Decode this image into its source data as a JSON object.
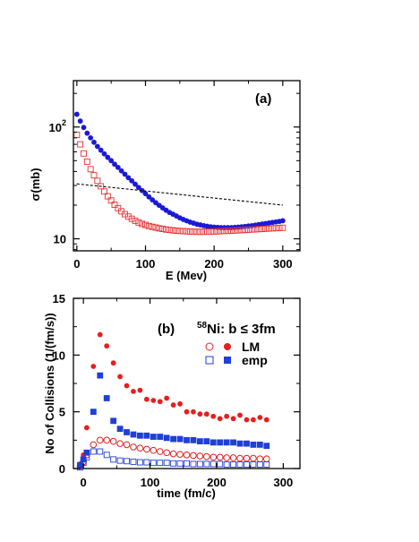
{
  "chart_data": [
    {
      "type": "scatter",
      "panel_label": "(a)",
      "xlabel": "E (Mev)",
      "ylabel": "σ(mb)",
      "xlim": [
        -5,
        325
      ],
      "ylim": [
        7.8,
        260
      ],
      "yscale": "log",
      "x_ticks": [
        "0",
        "100",
        "200",
        "300"
      ],
      "y_ticks": [
        {
          "value": 10,
          "label": "10"
        },
        {
          "value": 100,
          "label": "10",
          "sup": "2"
        }
      ],
      "colors": {
        "filled": "#1a1ad6",
        "open": "#e83030",
        "dashed": "#000000"
      },
      "series": [
        {
          "marker": "filled-circle",
          "color": "#1a1ad6",
          "x": [
            0,
            5,
            10,
            15,
            20,
            25,
            30,
            35,
            40,
            45,
            50,
            55,
            60,
            65,
            70,
            75,
            80,
            85,
            90,
            95,
            100,
            105,
            110,
            115,
            120,
            125,
            130,
            135,
            140,
            145,
            150,
            155,
            160,
            165,
            170,
            175,
            180,
            185,
            190,
            195,
            200,
            205,
            210,
            215,
            220,
            225,
            230,
            235,
            240,
            245,
            250,
            255,
            260,
            265,
            270,
            275,
            280,
            285,
            290,
            295,
            300
          ],
          "y": [
            130,
            113,
            99,
            88,
            80,
            73,
            67,
            62,
            57.5,
            53.5,
            50,
            46.5,
            43.5,
            40.5,
            37.8,
            35.2,
            33,
            30.8,
            28.8,
            27,
            25.3,
            23.7,
            22.3,
            21,
            19.9,
            18.9,
            18,
            17.2,
            16.6,
            16,
            15.4,
            14.9,
            14.5,
            14.1,
            13.8,
            13.5,
            13.3,
            13.1,
            12.95,
            12.8,
            12.7,
            12.65,
            12.6,
            12.6,
            12.6,
            12.6,
            12.65,
            12.7,
            12.8,
            12.9,
            13,
            13.1,
            13.25,
            13.4,
            13.55,
            13.7,
            13.85,
            14,
            14.15,
            14.3,
            14.5
          ]
        },
        {
          "marker": "open-square",
          "color": "#e83030",
          "x": [
            0,
            5,
            10,
            15,
            20,
            25,
            30,
            35,
            40,
            45,
            50,
            55,
            60,
            65,
            70,
            75,
            80,
            85,
            90,
            95,
            100,
            105,
            110,
            115,
            120,
            125,
            130,
            135,
            140,
            145,
            150,
            155,
            160,
            165,
            170,
            175,
            180,
            185,
            190,
            195,
            200,
            205,
            210,
            215,
            220,
            225,
            230,
            235,
            240,
            245,
            250,
            255,
            260,
            265,
            270,
            275,
            280,
            285,
            290,
            295,
            300
          ],
          "y": [
            85,
            70,
            58,
            49,
            42,
            37,
            33,
            29.5,
            26.5,
            24,
            22,
            20.2,
            18.8,
            17.6,
            16.6,
            15.8,
            15.1,
            14.5,
            14,
            13.6,
            13.3,
            13,
            12.8,
            12.6,
            12.4,
            12.25,
            12.1,
            12,
            11.9,
            11.8,
            11.75,
            11.7,
            11.65,
            11.6,
            11.58,
            11.55,
            11.55,
            11.55,
            11.58,
            11.6,
            11.63,
            11.66,
            11.7,
            11.74,
            11.78,
            11.82,
            11.86,
            11.9,
            11.95,
            12,
            12.05,
            12.1,
            12.15,
            12.2,
            12.25,
            12.3,
            12.35,
            12.4,
            12.45,
            12.5,
            12.55
          ]
        },
        {
          "marker": "dashed-line",
          "color": "#000000",
          "x": [
            0,
            300
          ],
          "y": [
            31,
            20
          ]
        }
      ]
    },
    {
      "type": "scatter",
      "panel_label": "(b)",
      "title_text": "Ni: b ≤ 3fm",
      "title_sup": "58",
      "xlabel": "time (fm/c)",
      "ylabel": "No of Collisions (1/(fm/s))",
      "xlim": [
        -15,
        325
      ],
      "ylim": [
        0,
        15
      ],
      "x_ticks": [
        "0",
        "100",
        "200",
        "300"
      ],
      "y_ticks": [
        "0",
        "5",
        "10",
        "15"
      ],
      "legend": {
        "lm": "LM",
        "emp": "emp"
      },
      "series": [
        {
          "legend": "LM",
          "marker": "filled-circle",
          "color": "#e81e1e",
          "x": [
            -5,
            0,
            5,
            15,
            25,
            35,
            45,
            55,
            65,
            75,
            85,
            95,
            105,
            115,
            125,
            135,
            145,
            155,
            165,
            175,
            185,
            195,
            205,
            215,
            225,
            235,
            245,
            255,
            265,
            275
          ],
          "y": [
            0.4,
            1.2,
            3.6,
            9.0,
            11.8,
            10.8,
            9.3,
            8.1,
            7.3,
            6.8,
            6.9,
            6.1,
            6.0,
            5.9,
            6.2,
            5.6,
            5.7,
            5.0,
            5.0,
            4.8,
            4.8,
            4.6,
            4.4,
            4.6,
            4.4,
            4.7,
            4.3,
            4.3,
            4.5,
            4.3
          ]
        },
        {
          "legend": "LM",
          "marker": "open-circle",
          "color": "#e81e1e",
          "x": [
            -5,
            0,
            5,
            15,
            25,
            35,
            45,
            55,
            65,
            75,
            85,
            95,
            105,
            115,
            125,
            135,
            145,
            155,
            165,
            175,
            185,
            195,
            205,
            215,
            225,
            235,
            245,
            255,
            265,
            275
          ],
          "y": [
            0.2,
            0.6,
            1.2,
            2.1,
            2.5,
            2.5,
            2.4,
            2.2,
            2.1,
            1.9,
            1.8,
            1.7,
            1.6,
            1.5,
            1.4,
            1.3,
            1.25,
            1.2,
            1.15,
            1.1,
            1.05,
            1.0,
            1.0,
            0.95,
            0.95,
            0.9,
            0.9,
            0.9,
            0.85,
            0.85
          ]
        },
        {
          "legend": "emp",
          "marker": "filled-square",
          "color": "#1f3fd6",
          "x": [
            -5,
            0,
            5,
            15,
            25,
            35,
            45,
            55,
            65,
            75,
            85,
            95,
            105,
            115,
            125,
            135,
            145,
            155,
            165,
            175,
            185,
            195,
            205,
            215,
            225,
            235,
            245,
            255,
            265,
            275
          ],
          "y": [
            0.3,
            0.8,
            1.4,
            5.0,
            8.2,
            6.2,
            4.2,
            3.5,
            3.2,
            3.0,
            2.9,
            2.9,
            2.8,
            2.8,
            2.7,
            2.6,
            2.6,
            2.5,
            2.5,
            2.4,
            2.4,
            2.3,
            2.3,
            2.3,
            2.3,
            2.2,
            2.2,
            2.1,
            2.1,
            2.0
          ]
        },
        {
          "legend": "emp",
          "marker": "open-square",
          "color": "#1f3fd6",
          "x": [
            -5,
            0,
            5,
            15,
            25,
            35,
            45,
            55,
            65,
            75,
            85,
            95,
            105,
            115,
            125,
            135,
            145,
            155,
            165,
            175,
            185,
            195,
            205,
            215,
            225,
            235,
            245,
            255,
            265,
            275
          ],
          "y": [
            0.1,
            0.5,
            1.0,
            1.5,
            1.5,
            1.2,
            0.8,
            0.7,
            0.65,
            0.6,
            0.55,
            0.55,
            0.5,
            0.5,
            0.5,
            0.45,
            0.45,
            0.45,
            0.4,
            0.4,
            0.4,
            0.4,
            0.4,
            0.35,
            0.35,
            0.35,
            0.35,
            0.35,
            0.35,
            0.35
          ]
        }
      ]
    }
  ]
}
